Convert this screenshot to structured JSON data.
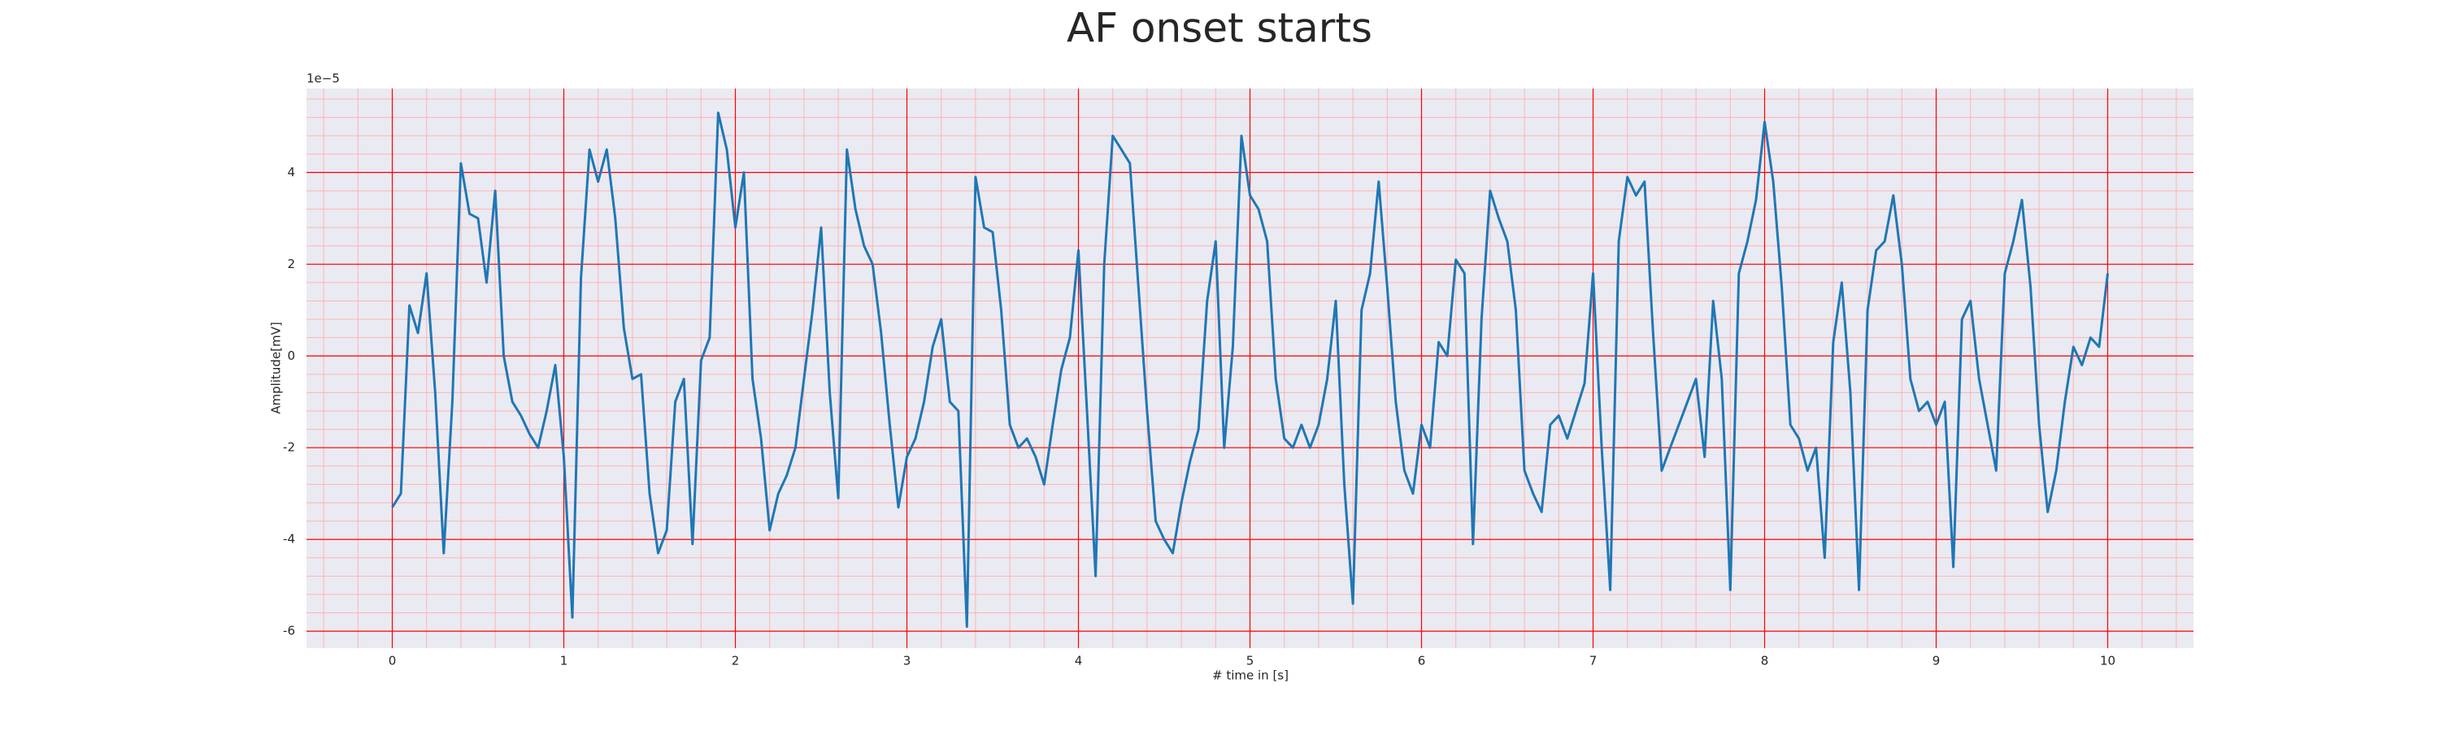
{
  "chart_data": {
    "type": "line",
    "title": "AF onset starts",
    "xlabel": "# time in [s]",
    "ylabel": "Amplitude[mV]",
    "y_offset_label": "1e−5",
    "x": [
      0,
      0.05,
      0.1,
      0.15,
      0.2,
      0.25,
      0.3,
      0.35,
      0.4,
      0.45,
      0.5,
      0.55,
      0.6,
      0.65,
      0.7,
      0.75,
      0.8,
      0.85,
      0.9,
      0.95,
      1,
      1.05,
      1.1,
      1.15,
      1.2,
      1.25,
      1.3,
      1.35,
      1.4,
      1.45,
      1.5,
      1.55,
      1.6,
      1.65,
      1.7,
      1.75,
      1.8,
      1.85,
      1.9,
      1.95,
      2,
      2.05,
      2.1,
      2.15,
      2.2,
      2.25,
      2.3,
      2.35,
      2.4,
      2.45,
      2.5,
      2.55,
      2.6,
      2.65,
      2.7,
      2.75,
      2.8,
      2.85,
      2.9,
      2.95,
      3,
      3.05,
      3.1,
      3.15,
      3.2,
      3.25,
      3.3,
      3.35,
      3.4,
      3.45,
      3.5,
      3.55,
      3.6,
      3.65,
      3.7,
      3.75,
      3.8,
      3.85,
      3.9,
      3.95,
      4,
      4.05,
      4.1,
      4.15,
      4.2,
      4.25,
      4.3,
      4.35,
      4.4,
      4.45,
      4.5,
      4.55,
      4.6,
      4.65,
      4.7,
      4.75,
      4.8,
      4.85,
      4.9,
      4.95,
      5,
      5.05,
      5.1,
      5.15,
      5.2,
      5.25,
      5.3,
      5.35,
      5.4,
      5.45,
      5.5,
      5.55,
      5.6,
      5.65,
      5.7,
      5.75,
      5.8,
      5.85,
      5.9,
      5.95,
      6,
      6.05,
      6.1,
      6.15,
      6.2,
      6.25,
      6.3,
      6.35,
      6.4,
      6.45,
      6.5,
      6.55,
      6.6,
      6.65,
      6.7,
      6.75,
      6.8,
      6.85,
      6.9,
      6.95,
      7,
      7.05,
      7.1,
      7.15,
      7.2,
      7.25,
      7.3,
      7.35,
      7.4,
      7.45,
      7.5,
      7.55,
      7.6,
      7.65,
      7.7,
      7.75,
      7.8,
      7.85,
      7.9,
      7.95,
      8,
      8.05,
      8.1,
      8.15,
      8.2,
      8.25,
      8.3,
      8.35,
      8.4,
      8.45,
      8.5,
      8.55,
      8.6,
      8.65,
      8.7,
      8.75,
      8.8,
      8.85,
      8.9,
      8.95,
      9,
      9.05,
      9.1,
      9.15,
      9.2,
      9.25,
      9.3,
      9.35,
      9.4,
      9.45,
      9.5,
      9.55,
      9.6,
      9.65,
      9.7,
      9.75,
      9.8,
      9.85,
      9.9,
      9.95,
      10
    ],
    "series": [
      {
        "color": "#1f77b4",
        "values": [
          -3.3,
          -3.0,
          1.1,
          0.5,
          1.8,
          -0.8,
          -4.3,
          -1.0,
          4.2,
          3.1,
          3.0,
          1.6,
          3.6,
          0.0,
          -1.0,
          -1.3,
          -1.7,
          -2.0,
          -1.2,
          -0.2,
          -2.2,
          -5.7,
          1.7,
          4.5,
          3.8,
          4.5,
          3.0,
          0.6,
          -0.5,
          -0.4,
          -3.0,
          -4.3,
          -3.8,
          -1.0,
          -0.5,
          -4.1,
          -0.1,
          0.4,
          5.3,
          4.5,
          2.8,
          4.0,
          -0.5,
          -1.8,
          -3.8,
          -3.0,
          -2.6,
          -2.0,
          -0.5,
          1.0,
          2.8,
          -0.8,
          -3.1,
          4.5,
          3.2,
          2.4,
          2.0,
          0.5,
          -1.5,
          -3.3,
          -2.2,
          -1.8,
          -1.0,
          0.2,
          0.8,
          -1.0,
          -1.2,
          -5.9,
          3.9,
          2.8,
          2.7,
          1.0,
          -1.5,
          -2.0,
          -1.8,
          -2.2,
          -2.8,
          -1.5,
          -0.3,
          0.4,
          2.3,
          -1.2,
          -4.8,
          2.0,
          4.8,
          4.5,
          4.2,
          1.5,
          -1.2,
          -3.6,
          -4.0,
          -4.3,
          -3.2,
          -2.3,
          -1.6,
          1.2,
          2.5,
          -2.0,
          0.2,
          4.8,
          3.5,
          3.2,
          2.5,
          -0.5,
          -1.8,
          -2.0,
          -1.5,
          -2.0,
          -1.5,
          -0.5,
          1.2,
          -2.8,
          -5.4,
          1.0,
          1.8,
          3.8,
          1.5,
          -1.0,
          -2.5,
          -3.0,
          -1.5,
          -2.0,
          0.3,
          0.0,
          2.1,
          1.8,
          -4.1,
          0.8,
          3.6,
          3.0,
          2.5,
          1.0,
          -2.5,
          -3.0,
          -3.4,
          -1.5,
          -1.3,
          -1.8,
          -1.2,
          -0.6,
          1.8,
          -2.0,
          -5.1,
          2.5,
          3.9,
          3.5,
          3.8,
          0.5,
          -2.5,
          -2.0,
          -1.5,
          -1.0,
          -0.5,
          -2.2,
          1.2,
          -0.5,
          -5.1,
          1.8,
          2.5,
          3.4,
          5.1,
          3.8,
          1.5,
          -1.5,
          -1.8,
          -2.5,
          -2.0,
          -4.4,
          0.3,
          1.6,
          -0.8,
          -5.1,
          1.0,
          2.3,
          2.5,
          3.5,
          2.0,
          -0.5,
          -1.2,
          -1.0,
          -1.5,
          -1.0,
          -4.6,
          0.8,
          1.2,
          -0.5,
          -1.5,
          -2.5,
          1.8,
          2.5,
          3.4,
          1.5,
          -1.5,
          -3.4,
          -2.5,
          -1.0,
          0.2,
          -0.2,
          0.4,
          0.2,
          1.8
        ]
      }
    ],
    "xlim": [
      -0.5,
      10.5
    ],
    "xticks": [
      0,
      1,
      2,
      3,
      4,
      5,
      6,
      7,
      8,
      9,
      10
    ],
    "ylim": [
      -6.37,
      5.83
    ],
    "yticks": [
      -6,
      -4,
      -2,
      0,
      2,
      4
    ],
    "grid": true,
    "grid_color": "#ff0000",
    "minor_grid": true,
    "minor_grid_color": "#ffb3b3",
    "background": "#eaeaf2"
  }
}
